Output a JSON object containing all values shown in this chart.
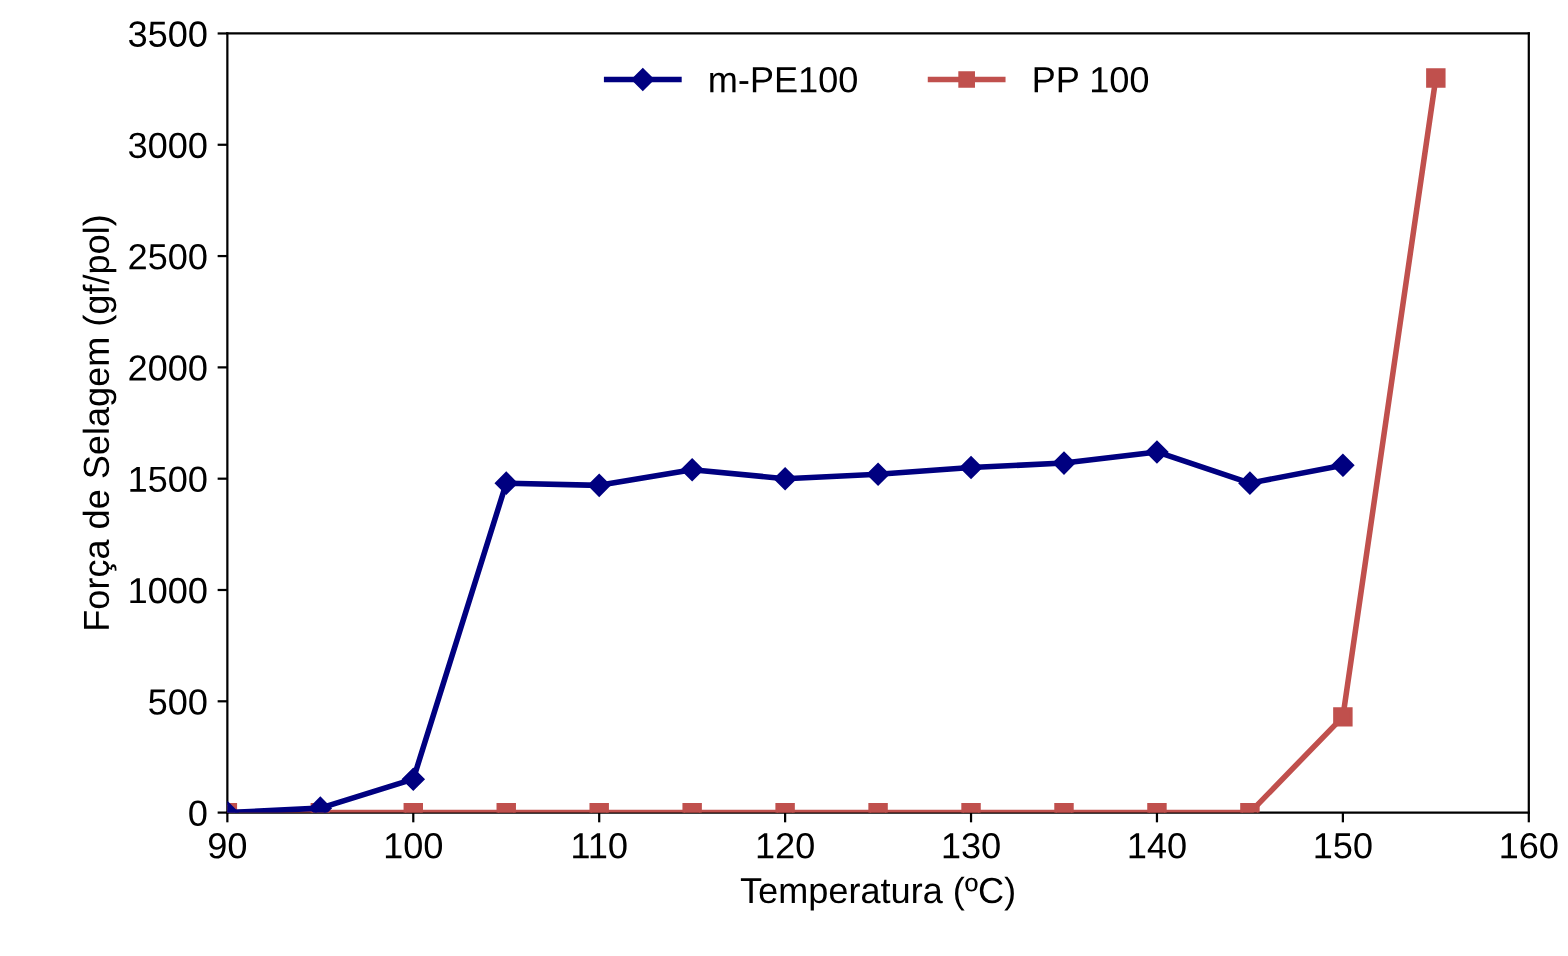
{
  "chart_data": {
    "type": "line",
    "xlabel": "Temperatura (ºC)",
    "ylabel": "Força de Selagem (gf/pol)",
    "series": [
      {
        "name": "m-PE100",
        "color": "#000080",
        "marker": "diamond",
        "x": [
          90,
          95,
          100,
          105,
          110,
          115,
          120,
          125,
          130,
          135,
          140,
          145,
          150
        ],
        "values": [
          0,
          20,
          150,
          1480,
          1470,
          1540,
          1500,
          1520,
          1550,
          1570,
          1620,
          1480,
          1560
        ]
      },
      {
        "name": "PP 100",
        "color": "#c0504d",
        "marker": "square",
        "x": [
          90,
          95,
          100,
          105,
          110,
          115,
          120,
          125,
          130,
          135,
          140,
          145,
          150,
          155
        ],
        "values": [
          0,
          0,
          0,
          0,
          0,
          0,
          0,
          0,
          0,
          0,
          0,
          0,
          430,
          3300
        ]
      }
    ],
    "xlim": [
      90,
      160
    ],
    "xticks": [
      90,
      100,
      110,
      120,
      130,
      140,
      150,
      160
    ],
    "ylim": [
      0,
      3500
    ],
    "yticks": [
      0,
      500,
      1000,
      1500,
      2000,
      2500,
      3000,
      3500
    ],
    "grid": false,
    "legend": "top",
    "line_style": "solid"
  }
}
